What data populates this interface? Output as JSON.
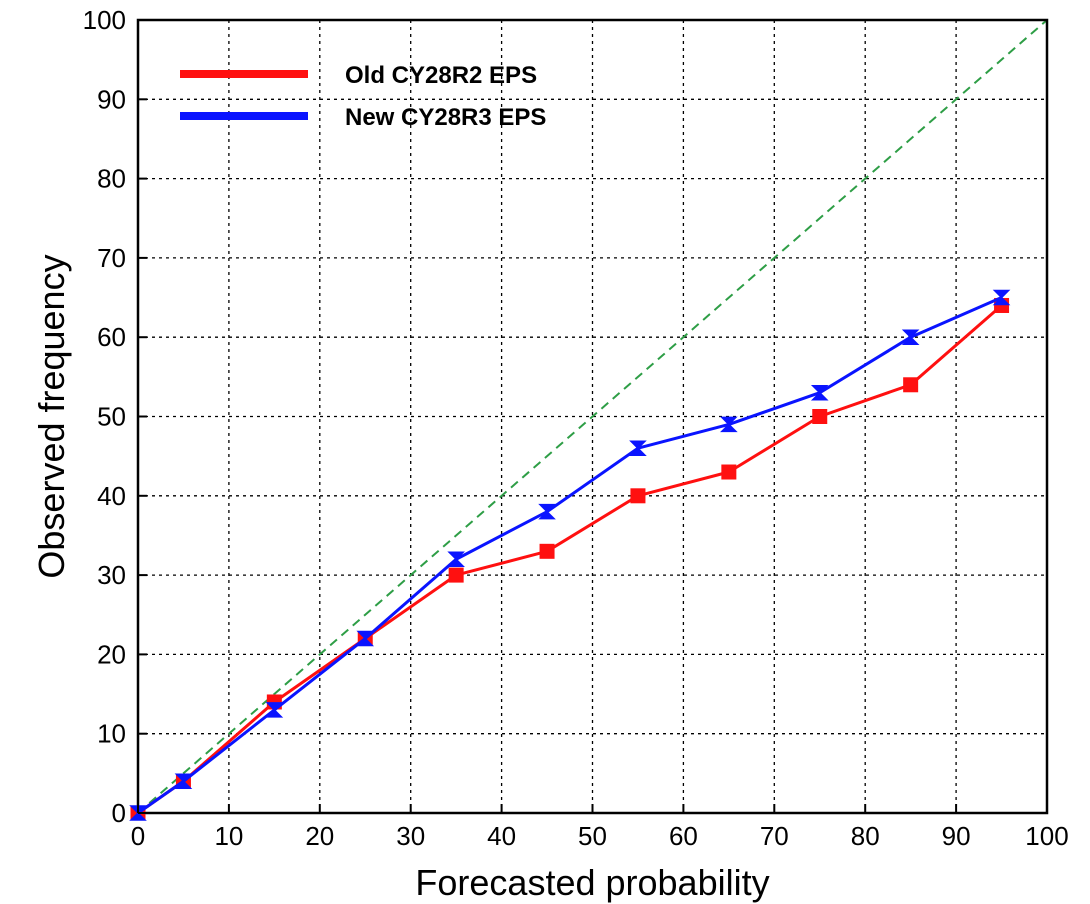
{
  "chart_data": {
    "type": "line",
    "title": "",
    "xlabel": "Forecasted probability",
    "ylabel": "Observed frequency",
    "xlim": [
      0,
      100
    ],
    "ylim": [
      0,
      100
    ],
    "xticks": [
      0,
      10,
      20,
      30,
      40,
      50,
      60,
      70,
      80,
      90,
      100
    ],
    "yticks": [
      0,
      10,
      20,
      30,
      40,
      50,
      60,
      70,
      80,
      90,
      100
    ],
    "grid": true,
    "legend_position": "top-left",
    "reference_line": {
      "x": [
        0,
        100
      ],
      "y": [
        0,
        100
      ],
      "color": "#2e9e46",
      "style": "dashed"
    },
    "series": [
      {
        "name": "Old CY28R2 EPS",
        "color": "#ff1010",
        "marker": "square",
        "x": [
          0,
          5,
          15,
          25,
          35,
          45,
          55,
          65,
          75,
          85,
          95
        ],
        "y": [
          0,
          4,
          14,
          22,
          30,
          33,
          40,
          43,
          50,
          54,
          64
        ]
      },
      {
        "name": "New CY28R3 EPS",
        "color": "#0a14ff",
        "marker": "hourglass",
        "x": [
          0,
          5,
          15,
          25,
          35,
          45,
          55,
          65,
          75,
          85,
          95
        ],
        "y": [
          0,
          4,
          13,
          22,
          32,
          38,
          46,
          49,
          53,
          60,
          65
        ]
      }
    ]
  }
}
